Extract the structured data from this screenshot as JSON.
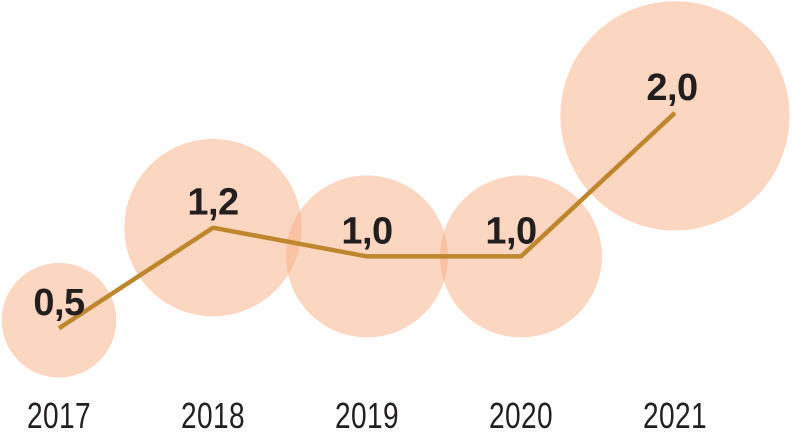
{
  "page": {
    "background_color": "#FFFFFF",
    "title": ""
  },
  "chart_data": {
    "type": "line",
    "variant": "bubble-line",
    "title": "",
    "xlabel": "",
    "ylabel": "",
    "categories": [
      "2017",
      "2018",
      "2019",
      "2020",
      "2021"
    ],
    "values": [
      0.5,
      1.2,
      1.0,
      1.0,
      2.0
    ],
    "value_labels": [
      "0,5",
      "1,2",
      "1,0",
      "1,0",
      "2,0"
    ],
    "decimal_separator": ",",
    "ylim": [
      0,
      2.8
    ],
    "grid": false,
    "legend": false,
    "axes_visible": false,
    "bubble_area_proportional_to_value": true,
    "colors": {
      "bubble_fill": "#F7AD83",
      "bubble_opacity": 0.5,
      "line": "#BE872E",
      "value_label": "#231F20",
      "tick_label": "#231F20",
      "background": "#FFFFFF"
    }
  }
}
